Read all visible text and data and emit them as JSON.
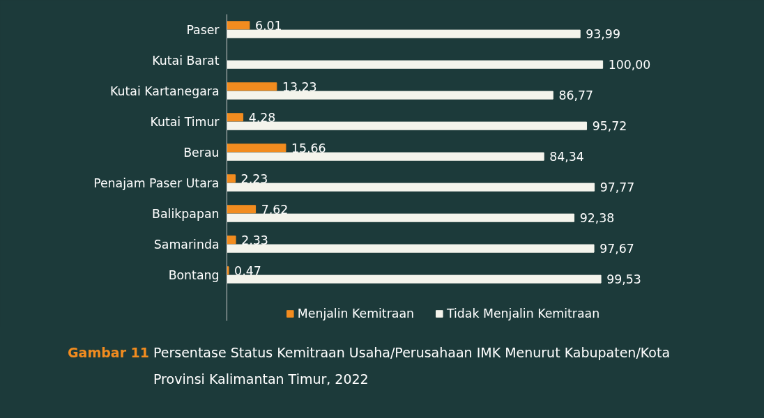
{
  "chart_data": {
    "type": "bar",
    "orientation": "horizontal",
    "title": "Gambar 11",
    "subtitle": "Persentase Status Kemitraan Usaha/Perusahaan IMK Menurut Kabupaten/Kota Provinsi Kalimantan Timur, 2022",
    "categories": [
      "Paser",
      "Kutai Barat",
      "Kutai Kartanegara",
      "Kutai Timur",
      "Berau",
      "Penajam Paser Utara",
      "Balikpapan",
      "Samarinda",
      "Bontang"
    ],
    "series": [
      {
        "name": "Menjalin Kemitraan",
        "color": "#f28c1f",
        "values": [
          6.01,
          0,
          13.23,
          4.28,
          15.66,
          2.23,
          7.62,
          2.33,
          0.47
        ],
        "value_labels": [
          "6,01",
          null,
          "13,23",
          "4,28",
          "15,66",
          "2,23",
          "7,62",
          "2,33",
          "0,47"
        ]
      },
      {
        "name": "Tidak Menjalin Kemitraan",
        "color": "#f4f4ec",
        "values": [
          93.99,
          100.0,
          86.77,
          95.72,
          84.34,
          97.77,
          92.38,
          97.67,
          99.53
        ],
        "value_labels": [
          "93,99",
          "100,00",
          "86,77",
          "95,72",
          "84,34",
          "97,77",
          "92,38",
          "97,67",
          "99,53"
        ]
      }
    ],
    "legend": "bottom",
    "grid": false
  }
}
